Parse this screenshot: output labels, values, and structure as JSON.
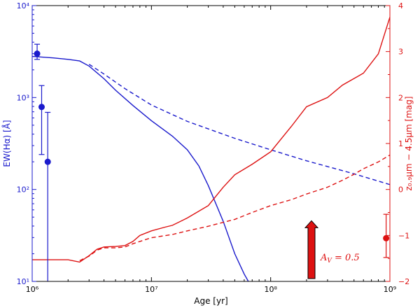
{
  "chart_data": {
    "type": "line",
    "title": "",
    "xlabel": "Age [yr]",
    "xscale": "log",
    "xlim": [
      1000000,
      1000000000
    ],
    "x_ticks": [
      1000000,
      10000000,
      100000000,
      1000000000
    ],
    "x_tick_labels": [
      "10⁶",
      "10⁷",
      "10⁸",
      "10⁹"
    ],
    "left_axis": {
      "label": "EW(Hα) [Å]",
      "scale": "log",
      "ylim": [
        10,
        10000
      ],
      "ticks": [
        10,
        100,
        1000,
        10000
      ],
      "tick_labels": [
        "10¹",
        "10²",
        "10³",
        "10⁴"
      ],
      "color": "#1a1acc"
    },
    "right_axis": {
      "label": "z₀.₉μm − 4.5μm [mag]",
      "scale": "linear",
      "ylim": [
        -2,
        4
      ],
      "ticks": [
        -2,
        -1,
        0,
        1,
        2,
        3,
        4
      ],
      "tick_labels": [
        "−2",
        "−1",
        "0",
        "1",
        "2",
        "3",
        "4"
      ],
      "color": "#dd1111"
    },
    "grid": false,
    "series": [
      {
        "axis": "left",
        "style": "solid",
        "color": "#1a1acc",
        "x": [
          1000000,
          1500000,
          2000000,
          2500000,
          3000000,
          4000000,
          5000000,
          7000000,
          10000000,
          15000000,
          20000000,
          25000000,
          30000000,
          40000000,
          50000000,
          60000000,
          65000000
        ],
        "y": [
          2800,
          2700,
          2600,
          2500,
          2200,
          1600,
          1200,
          820,
          560,
          380,
          270,
          180,
          110,
          45,
          20,
          12,
          10
        ]
      },
      {
        "axis": "left",
        "style": "dashed",
        "color": "#1a1acc",
        "x": [
          3000000,
          4000000,
          6000000,
          10000000,
          20000000,
          50000000,
          100000000,
          200000000,
          500000000,
          1000000000
        ],
        "y": [
          2300,
          1800,
          1250,
          830,
          550,
          360,
          270,
          205,
          148,
          113
        ]
      },
      {
        "axis": "right",
        "style": "solid",
        "color": "#dd1111",
        "x": [
          1000000,
          2000000,
          2500000,
          3000000,
          3500000,
          4000000,
          5000000,
          6000000,
          7000000,
          8000000,
          10000000,
          13000000,
          15000000,
          20000000,
          30000000,
          40000000,
          50000000,
          70000000,
          100000000,
          150000000,
          200000000,
          300000000,
          400000000,
          600000000,
          800000000,
          1000000000
        ],
        "y": [
          -1.53,
          -1.53,
          -1.58,
          -1.44,
          -1.3,
          -1.25,
          -1.24,
          -1.22,
          -1.13,
          -1.0,
          -0.9,
          -0.82,
          -0.78,
          -0.62,
          -0.35,
          0.05,
          0.32,
          0.55,
          0.82,
          1.38,
          1.8,
          2.0,
          2.27,
          2.53,
          2.95,
          3.75
        ]
      },
      {
        "axis": "right",
        "style": "dashed",
        "color": "#dd1111",
        "x": [
          2500000,
          3000000,
          3500000,
          4000000,
          5000000,
          6000000,
          7000000,
          8000000,
          10000000,
          15000000,
          20000000,
          30000000,
          50000000,
          70000000,
          100000000,
          150000000,
          200000000,
          300000000,
          400000000,
          500000000,
          600000000,
          800000000,
          1000000000
        ],
        "y": [
          -1.55,
          -1.45,
          -1.32,
          -1.27,
          -1.27,
          -1.25,
          -1.18,
          -1.13,
          -1.05,
          -0.98,
          -0.9,
          -0.8,
          -0.65,
          -0.5,
          -0.35,
          -0.22,
          -0.1,
          0.05,
          0.2,
          0.33,
          0.45,
          0.6,
          0.75
        ]
      }
    ],
    "error_points": [
      {
        "axis": "left",
        "color": "#1a1acc",
        "x": 1100000,
        "y": 3000,
        "y_low": 2600,
        "y_high": 3800
      },
      {
        "axis": "left",
        "color": "#1a1acc",
        "x": 1200000,
        "y": 790,
        "y_low": 240,
        "y_high": 1350
      },
      {
        "axis": "left",
        "color": "#1a1acc",
        "x": 1350000,
        "y": 200,
        "y_low": 10,
        "y_high": 690
      },
      {
        "axis": "right",
        "color": "#dd1111",
        "x": 930000000,
        "y": -1.06,
        "y_low": -1.48,
        "y_high": -0.54
      }
    ],
    "annotations": [
      {
        "text": "A_V = 0.5",
        "x": 220000000,
        "y_right": -1.48,
        "arrow": "up",
        "color": "#dd1111"
      }
    ]
  }
}
